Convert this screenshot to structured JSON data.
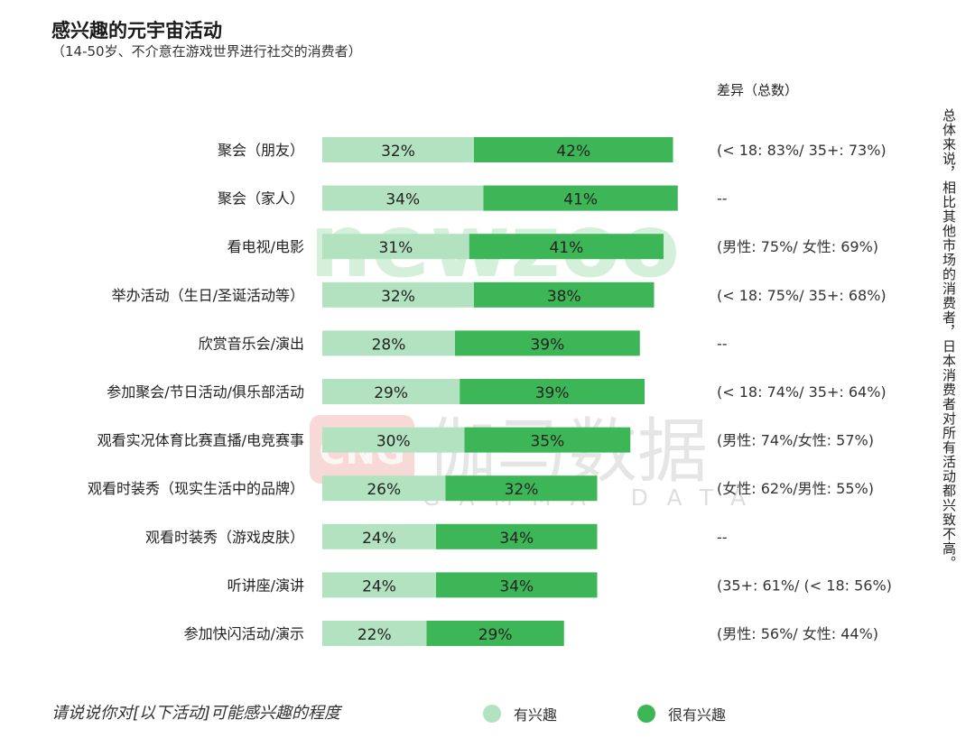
{
  "title": "感兴趣的元宇宙活动",
  "subtitle": "（14-50岁、不介意在游戏世界进行社交的消费者）",
  "diff_header": "差异（总数）",
  "side_note": "总体来说，相比其他市场的消费者，日本消费者对所有活动都兴致不高。",
  "footer_question": "请说说你对[以下活动]可能感兴趣的程度",
  "colors": {
    "interested": "#b3e2c1",
    "very_interested": "#3cb656"
  },
  "watermarks": {
    "newzoo": "newzoo",
    "gamma_logo": "CNG",
    "gamma_cn": "伽马数据",
    "gamma_en": "GAMMA DATA"
  },
  "chart_data": {
    "type": "bar",
    "orientation": "horizontal",
    "stacked": true,
    "categories": [
      "聚会（朋友）",
      "聚会（家人）",
      "看电视/电影",
      "举办活动（生日/圣诞活动等）",
      "欣赏音乐会/演出",
      "参加聚会/节日活动/俱乐部活动",
      "观看实况体育比赛直播/电竞赛事",
      "观看时装秀（现实生活中的品牌）",
      "观看时装秀（游戏皮肤）",
      "听讲座/演讲",
      "参加快闪活动/演示"
    ],
    "series": [
      {
        "name": "有兴趣",
        "color": "#b3e2c1",
        "values": [
          32,
          34,
          31,
          32,
          28,
          29,
          30,
          26,
          24,
          24,
          22
        ]
      },
      {
        "name": "很有兴趣",
        "color": "#3cb656",
        "values": [
          42,
          41,
          41,
          38,
          39,
          39,
          35,
          32,
          34,
          34,
          29
        ]
      }
    ],
    "differences": [
      "(< 18: 83%/ 35+: 73%)",
      "--",
      "(男性: 75%/ 女性: 69%)",
      "(< 18: 75%/ 35+: 68%)",
      "--",
      "(< 18: 74%/ 35+: 64%)",
      "(男性: 74%/女性: 57%)",
      "(女性: 62%/男性: 55%)",
      "--",
      "(35+: 61%/ (< 18: 56%)",
      "(男性: 56%/ 女性: 44%)"
    ],
    "value_suffix": "%",
    "legend": "bottom"
  }
}
